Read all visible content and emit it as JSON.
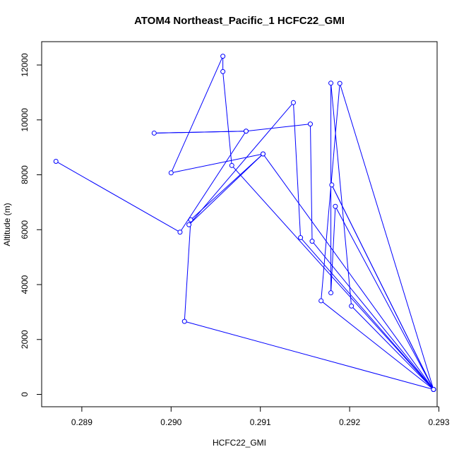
{
  "chart_data": {
    "type": "line",
    "title": "ATOM4 Northeast_Pacific_1 HCFC22_GMI",
    "xlabel": "HCFC22_GMI",
    "ylabel": "Altitude (m)",
    "xlim": [
      0.28855,
      0.29298
    ],
    "ylim": [
      -450,
      12850
    ],
    "x_ticks": [
      0.289,
      0.29,
      0.291,
      0.292,
      0.293
    ],
    "x_tick_labels": [
      "0.289",
      "0.290",
      "0.291",
      "0.292",
      "0.293"
    ],
    "y_ticks": [
      0,
      2000,
      4000,
      6000,
      8000,
      10000,
      12000
    ],
    "y_tick_labels": [
      "0",
      "2000",
      "4000",
      "6000",
      "8000",
      "10000",
      "12000"
    ],
    "grid": false,
    "legend": "none",
    "marker": "open-circle",
    "series": [
      {
        "color": "#0000ff",
        "points": [
          {
            "x": 0.29294,
            "y": 180
          },
          {
            "x": 0.29015,
            "y": 2660
          },
          {
            "x": 0.29022,
            "y": 6360
          },
          {
            "x": 0.29103,
            "y": 8760
          },
          {
            "x": 0.2902,
            "y": 6180
          },
          {
            "x": 0.29137,
            "y": 10630
          },
          {
            "x": 0.29145,
            "y": 5710
          },
          {
            "x": 0.29294,
            "y": 180
          },
          {
            "x": 0.29168,
            "y": 3410
          },
          {
            "x": 0.29189,
            "y": 11330
          },
          {
            "x": 0.29294,
            "y": 180
          },
          {
            "x": 0.29202,
            "y": 3220
          },
          {
            "x": 0.29179,
            "y": 11340
          },
          {
            "x": 0.29179,
            "y": 3700
          },
          {
            "x": 0.29184,
            "y": 6850
          },
          {
            "x": 0.29294,
            "y": 180
          },
          {
            "x": 0.2918,
            "y": 7630
          },
          {
            "x": 0.29294,
            "y": 180
          },
          {
            "x": 0.29068,
            "y": 8340
          },
          {
            "x": 0.29058,
            "y": 11760
          },
          {
            "x": 0.29058,
            "y": 12320
          },
          {
            "x": 0.29,
            "y": 8070
          },
          {
            "x": 0.29103,
            "y": 8760
          },
          {
            "x": 0.29294,
            "y": 180
          },
          {
            "x": 0.29158,
            "y": 5580
          },
          {
            "x": 0.29156,
            "y": 9850
          },
          {
            "x": 0.29084,
            "y": 9590
          },
          {
            "x": 0.28981,
            "y": 9520
          },
          {
            "x": 0.29084,
            "y": 9590
          },
          {
            "x": 0.2901,
            "y": 5910
          },
          {
            "x": 0.28871,
            "y": 8490
          }
        ]
      }
    ]
  }
}
